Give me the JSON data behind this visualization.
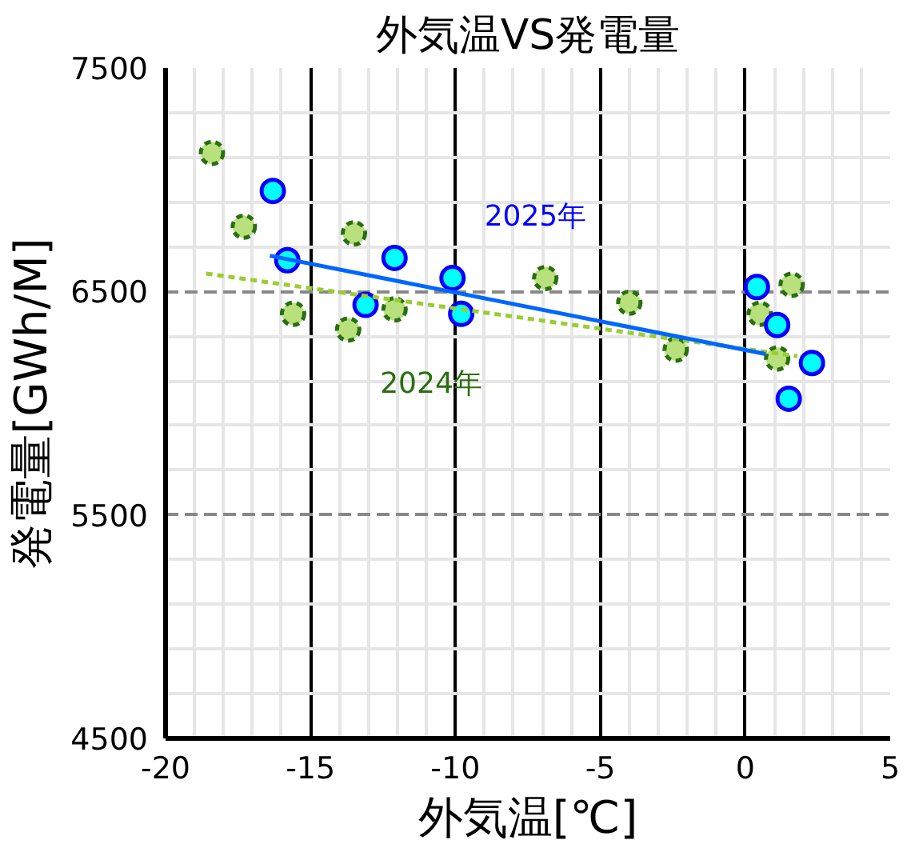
{
  "chart_data": {
    "type": "scatter",
    "title": "外気温VS発電量",
    "xlabel": "外気温[℃]",
    "ylabel": "発電量[GWh/M]",
    "xlim": [
      -20,
      5
    ],
    "xticks": [
      -20,
      -15,
      -10,
      -5,
      0,
      5
    ],
    "ylim": [
      4500,
      7500
    ],
    "yticks": [
      4500,
      5500,
      6500,
      7500
    ],
    "grid": true,
    "series": [
      {
        "name": "2024年",
        "marker": "circle",
        "color": "#b8e07c",
        "line_style": "dashed",
        "x": [
          -18.4,
          -17.3,
          -13.5,
          -15.6,
          -13.7,
          -12.1,
          -6.9,
          -4.0,
          -2.4,
          0.5,
          1.6,
          1.1
        ],
        "values": [
          7120,
          6790,
          6760,
          6400,
          6330,
          6420,
          6560,
          6450,
          6240,
          6400,
          6530,
          6200
        ]
      },
      {
        "name": "2025年",
        "marker": "circle",
        "color": "#00ffff",
        "line_style": "solid",
        "x": [
          -16.3,
          -15.8,
          -12.1,
          -13.1,
          -10.1,
          -9.8,
          0.4,
          1.1,
          2.3,
          1.5
        ],
        "values": [
          6950,
          6640,
          6650,
          6440,
          6560,
          6400,
          6520,
          6350,
          6180,
          6020
        ]
      },
      {
        "type": "line",
        "color": "#9acd32",
        "line_style": "dashed",
        "x": [
          -18.6,
          1.8
        ],
        "values": [
          6580,
          6210
        ]
      },
      {
        "type": "line",
        "color": "#0066ff",
        "line_style": "solid",
        "x": [
          -16.4,
          0.7
        ],
        "values": [
          6660,
          6220
        ]
      }
    ]
  }
}
